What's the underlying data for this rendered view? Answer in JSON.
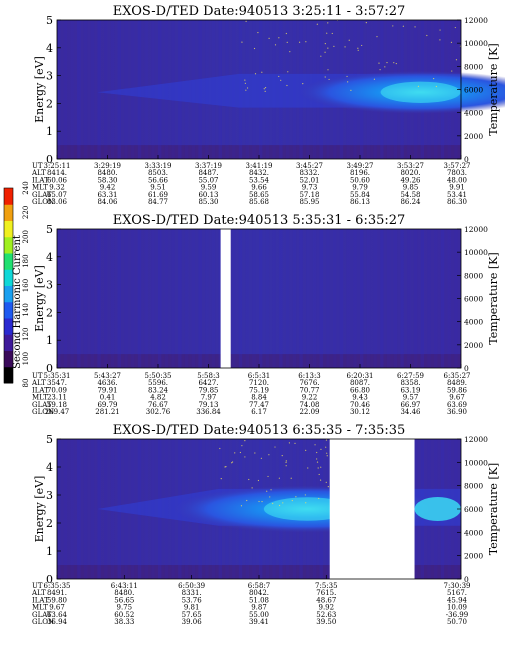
{
  "colorbar": {
    "label": "Second Harmonic Current",
    "ticks": [
      80,
      100,
      120,
      140,
      160,
      180,
      200,
      220,
      240
    ],
    "range": [
      80,
      240
    ],
    "colors": [
      "#000000",
      "#3a0a5a",
      "#3e1a9a",
      "#2a2ad0",
      "#1f5af0",
      "#1aa0f0",
      "#10d8d8",
      "#20e070",
      "#a0f020",
      "#f0f020",
      "#f0a010",
      "#f02000"
    ]
  },
  "chart_data": [
    {
      "type": "heatmap",
      "title": "EXOS-D/TED   Date:940513   3:25:11 - 3:57:27",
      "ylabel": "Energy [eV]",
      "ylabel_right": "Temperature [K]",
      "ylim": [
        0,
        5
      ],
      "yticks": [
        0,
        1,
        2,
        3,
        4,
        5
      ],
      "ylim_right": [
        0,
        12000
      ],
      "yticks_right": [
        0,
        2000,
        4000,
        6000,
        8000,
        10000,
        12000
      ],
      "gaps": [],
      "band": {
        "energy_center": 2.4,
        "energy_halfwidth": 0.55,
        "start_fraction": 0.45,
        "peak_fraction": 0.9
      },
      "table": {
        "row_labels": [
          "UT",
          "ALT",
          "ILAT",
          "MLT",
          "GLAT",
          "GLON"
        ],
        "columns": [
          [
            "3:25:11",
            "8414.",
            "60.06",
            "9.32",
            "65.07",
            "83.06"
          ],
          [
            "3:29:19",
            "8480.",
            "58.30",
            "9.42",
            "63.31",
            "84.06"
          ],
          [
            "3:33:19",
            "8503.",
            "56.66",
            "9.51",
            "61.69",
            "84.77"
          ],
          [
            "3:37:19",
            "8487.",
            "55.07",
            "9.59",
            "60.13",
            "85.30"
          ],
          [
            "3:41:19",
            "8432.",
            "53.54",
            "9.66",
            "58.65",
            "85.68"
          ],
          [
            "3:45:27",
            "8332.",
            "52.01",
            "9.73",
            "57.18",
            "85.95"
          ],
          [
            "3:49:27",
            "8196.",
            "50.60",
            "9.79",
            "55.84",
            "86.13"
          ],
          [
            "3:53:27",
            "8020.",
            "49.26",
            "9.85",
            "54.58",
            "86.24"
          ],
          [
            "3:57:27",
            "7803.",
            "48.00",
            "9.91",
            "53.41",
            "86.30"
          ]
        ]
      }
    },
    {
      "type": "heatmap",
      "title": "EXOS-D/TED   Date:940513   5:35:31 - 6:35:27",
      "ylabel": "Energy [eV]",
      "ylabel_right": "Temperature [K]",
      "ylim": [
        0,
        5
      ],
      "yticks": [
        0,
        1,
        2,
        3,
        4,
        5
      ],
      "ylim_right": [
        0,
        12000
      ],
      "yticks_right": [
        0,
        2000,
        4000,
        6000,
        8000,
        10000,
        12000
      ],
      "gaps": [
        [
          0.405,
          0.43
        ]
      ],
      "band": null,
      "table": {
        "row_labels": [
          "UT",
          "ALT",
          "ILAT",
          "MLT",
          "GLAT",
          "GLON"
        ],
        "columns": [
          [
            "5:35:31",
            "3547.",
            "70.09",
            "23.11",
            "59.18",
            "269.47"
          ],
          [
            "5:43:27",
            "4636.",
            "79.91",
            "0.41",
            "69.79",
            "281.21"
          ],
          [
            "5:50:35",
            "5596.",
            "83.24",
            "4.82",
            "76.67",
            "302.76"
          ],
          [
            "5:58:3",
            "6427.",
            "79.85",
            "7.97",
            "79.13",
            "336.84"
          ],
          [
            "6:5:31",
            "7120.",
            "75.19",
            "8.84",
            "77.47",
            "6.17"
          ],
          [
            "6:13:3",
            "7676.",
            "70.77",
            "9.22",
            "74.08",
            "22.09"
          ],
          [
            "6:20:31",
            "8087.",
            "66.80",
            "9.43",
            "70.46",
            "30.12"
          ],
          [
            "6:27:59",
            "8358.",
            "63.19",
            "9.57",
            "66.97",
            "34.46"
          ],
          [
            "6:35:27",
            "8489.",
            "59.86",
            "9.67",
            "63.69",
            "36.90"
          ]
        ]
      }
    },
    {
      "type": "heatmap",
      "title": "EXOS-D/TED   Date:940513   6:35:35 - 7:35:35",
      "ylabel": "Energy [eV]",
      "ylabel_right": "Temperature [K]",
      "ylim": [
        0,
        5
      ],
      "yticks": [
        0,
        1,
        2,
        3,
        4,
        5
      ],
      "ylim_right": [
        0,
        12000
      ],
      "yticks_right": [
        0,
        2000,
        4000,
        6000,
        8000,
        10000,
        12000
      ],
      "gaps": [
        [
          0.675,
          0.885
        ]
      ],
      "band": {
        "energy_center": 2.5,
        "energy_halfwidth": 0.6,
        "start_fraction": 0.4,
        "peak_fraction": 0.62
      },
      "table": {
        "row_labels": [
          "UT",
          "ALT",
          "ILAT",
          "MLT",
          "GLAT",
          "GLON"
        ],
        "columns": [
          [
            "6:35:35",
            "8491.",
            "59.80",
            "9.67",
            "63.64",
            "36.94"
          ],
          [
            "6:43:11",
            "8480.",
            "56.65",
            "9.75",
            "60.52",
            "38.33"
          ],
          [
            "6:50:39",
            "8331.",
            "53.76",
            "9.81",
            "57.65",
            "39.06"
          ],
          [
            "6:58:7",
            "8042.",
            "51.08",
            "9.87",
            "55.00",
            "39.41"
          ],
          [
            "7:5:35",
            "7615.",
            "48.67",
            "9.92",
            "52.63",
            "39.50"
          ],
          [
            "7:30:39",
            "5167.",
            "45.94",
            "10.09",
            "-36.99",
            "50.70"
          ]
        ],
        "column_positions": [
          0,
          0.1666,
          0.3333,
          0.5,
          0.6666,
          1.0
        ]
      }
    }
  ]
}
